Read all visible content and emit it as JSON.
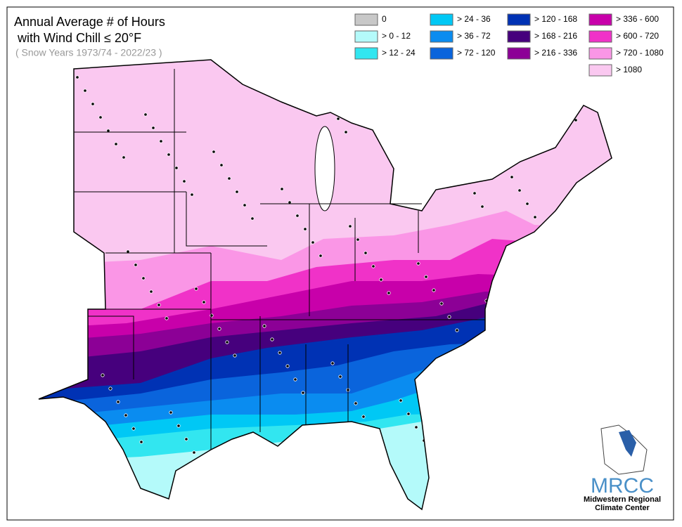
{
  "title_lines": [
    "Annual Average # of Hours",
    " with Wind Chill ≤ 20°F"
  ],
  "subtitle": "( Snow Years 1973/74 - 2022/23 )",
  "legend": [
    [
      {
        "label": "0",
        "color": "#c8c8c8"
      },
      {
        "label": "> 0 - 12",
        "color": "#b4fafa"
      },
      {
        "label": "> 12 - 24",
        "color": "#32e6f0"
      }
    ],
    [
      {
        "label": "> 24 - 36",
        "color": "#00c8f5"
      },
      {
        "label": "> 36 - 72",
        "color": "#0a8cf0"
      },
      {
        "label": "> 72 - 120",
        "color": "#0a64dc"
      }
    ],
    [
      {
        "label": "> 120 - 168",
        "color": "#0032b4"
      },
      {
        "label": "> 168 - 216",
        "color": "#46007d"
      },
      {
        "label": "> 216 - 336",
        "color": "#8c0096"
      }
    ],
    [
      {
        "label": "> 336 - 600",
        "color": "#c800aa"
      },
      {
        "label": "> 600 - 720",
        "color": "#f032c8"
      },
      {
        "label": "> 720 - 1080",
        "color": "#fa96e6"
      },
      {
        "label": "> 1080",
        "color": "#fac8f0"
      }
    ]
  ],
  "logo": {
    "acronym": "MRCC",
    "line1": "Midwestern Regional",
    "line2": "Climate Center"
  }
}
